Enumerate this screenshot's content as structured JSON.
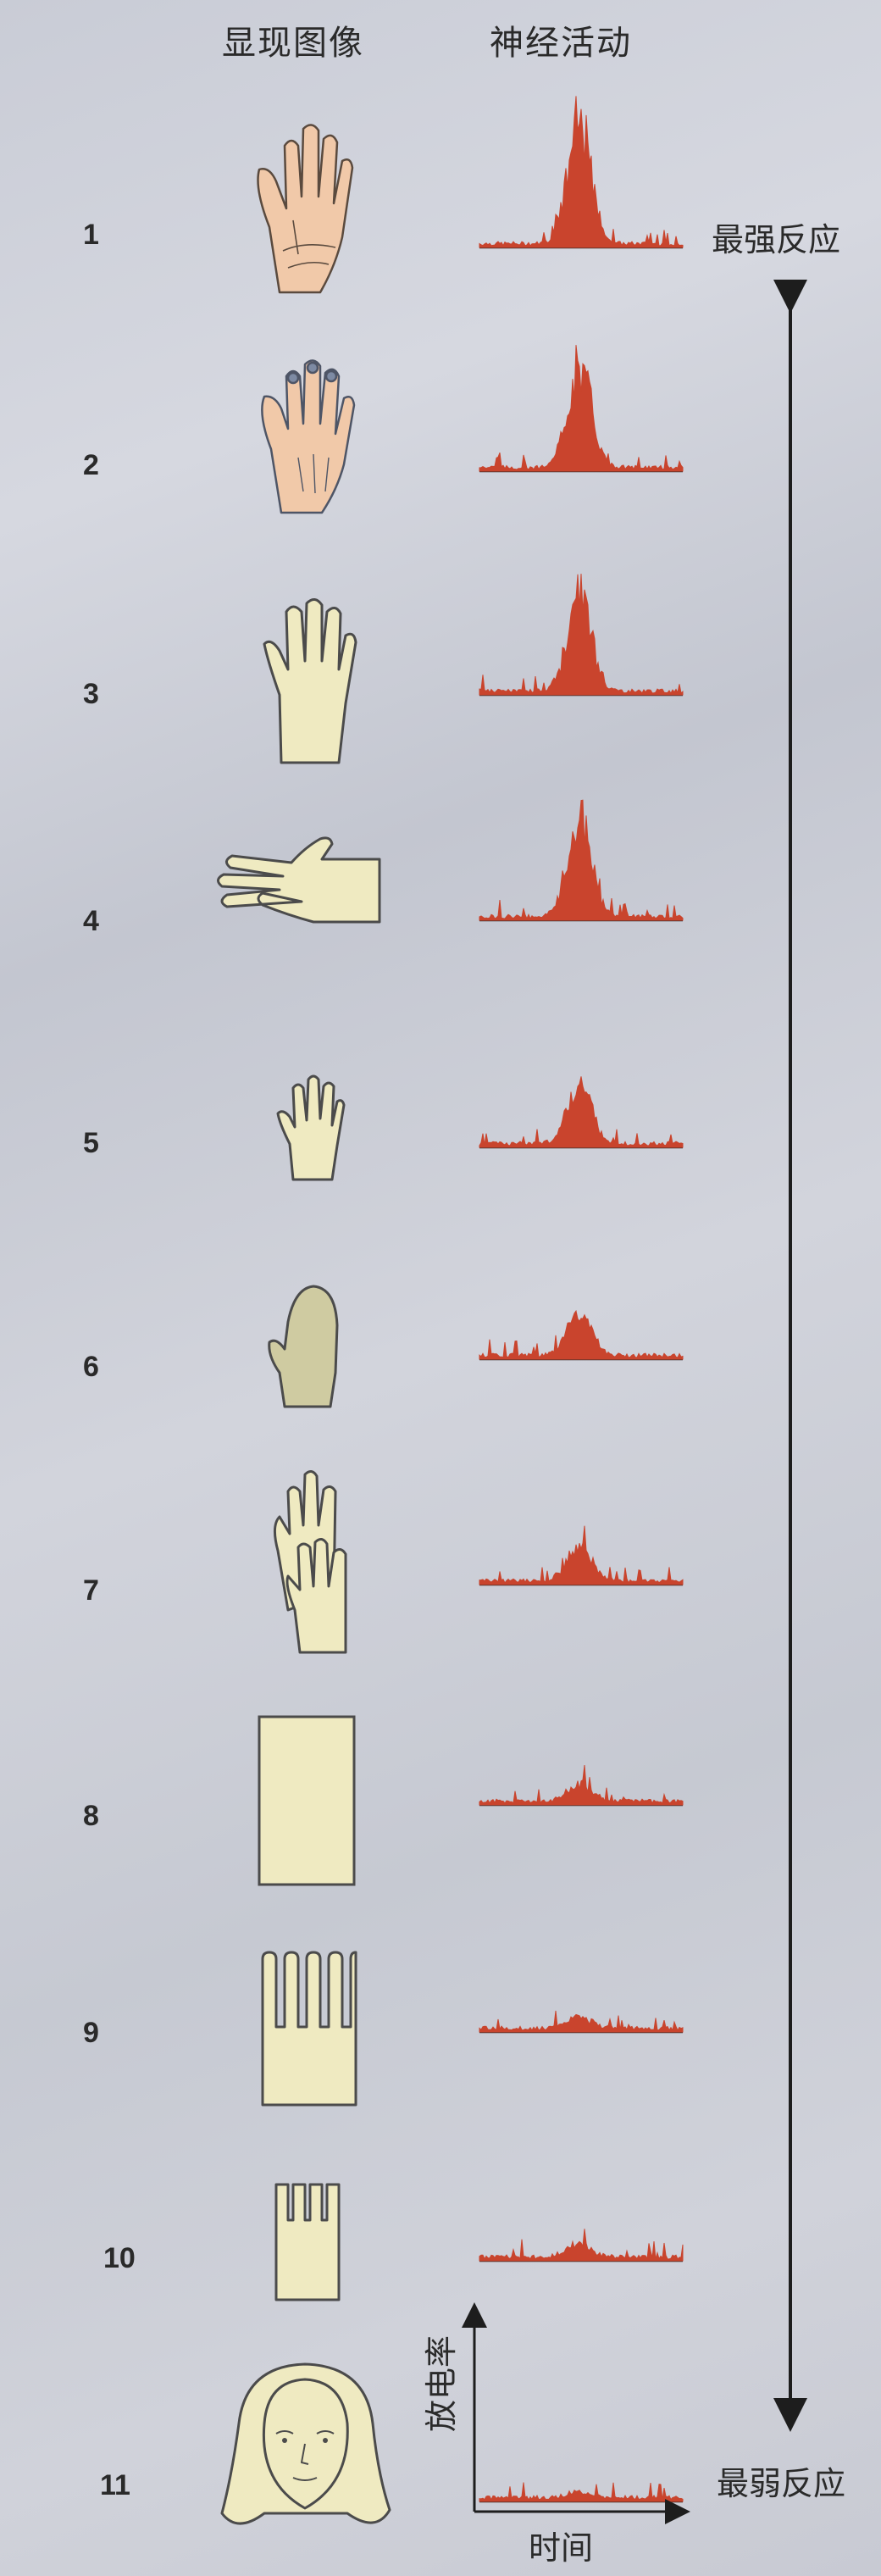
{
  "headers": {
    "images": "显现图像",
    "activity": "神经活动"
  },
  "response_labels": {
    "strongest": "最强反应",
    "weakest": "最弱反应"
  },
  "axis_labels": {
    "y": "放电率",
    "x": "时间"
  },
  "rows": [
    {
      "number": "1",
      "image": "hand-palm-colored-icon",
      "peak": 1.0
    },
    {
      "number": "2",
      "image": "hand-back-colored-icon",
      "peak": 0.85
    },
    {
      "number": "3",
      "image": "hand-outline-icon",
      "peak": 0.82
    },
    {
      "number": "4",
      "image": "hand-sideways-icon",
      "peak": 0.82
    },
    {
      "number": "5",
      "image": "small-hand-icon",
      "peak": 0.52
    },
    {
      "number": "6",
      "image": "mitten-icon",
      "peak": 0.36
    },
    {
      "number": "7",
      "image": "overlapping-hands-icon",
      "peak": 0.3
    },
    {
      "number": "8",
      "image": "rectangle-icon",
      "peak": 0.15
    },
    {
      "number": "9",
      "image": "comb-shape-icon",
      "peak": 0.1
    },
    {
      "number": "10",
      "image": "small-comb-icon",
      "peak": 0.11
    },
    {
      "number": "11",
      "image": "face-icon",
      "peak": 0.05
    }
  ],
  "colors": {
    "spike": "#c9442d",
    "shape_fill": "#efeac1",
    "skin": "#f1c9a9",
    "mitten": "#cfcba1",
    "arrow": "#1d1d1d"
  }
}
